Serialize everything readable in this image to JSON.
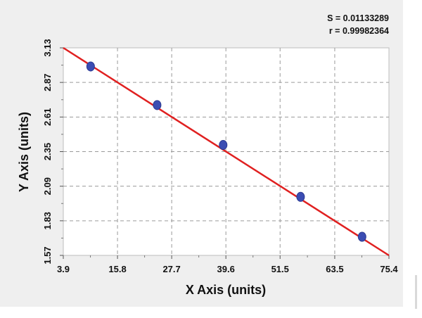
{
  "chart_data": {
    "type": "scatter",
    "stats": [
      "S = 0.01133289",
      "r = 0.99982364"
    ],
    "xlabel": "X Axis (units)",
    "ylabel": "Y Axis (units)",
    "xlim": [
      3.9,
      75.4
    ],
    "ylim": [
      1.57,
      3.13
    ],
    "xticks": [
      "3.9",
      "15.8",
      "27.7",
      "39.6",
      "51.5",
      "63.5",
      "75.4"
    ],
    "yticks": [
      "1.57",
      "1.83",
      "2.09",
      "2.35",
      "2.61",
      "2.87",
      "3.13"
    ],
    "grid": true,
    "series": [
      {
        "values_x": [
          9.9,
          24.5,
          39.0,
          56.0,
          69.5
        ],
        "values_y": [
          2.99,
          2.7,
          2.4,
          2.01,
          1.71
        ],
        "color": "#3b4db3"
      }
    ],
    "fit_line": {
      "x": [
        3.9,
        75.4
      ],
      "y": [
        3.13,
        1.57
      ],
      "color": "#e02020"
    }
  }
}
